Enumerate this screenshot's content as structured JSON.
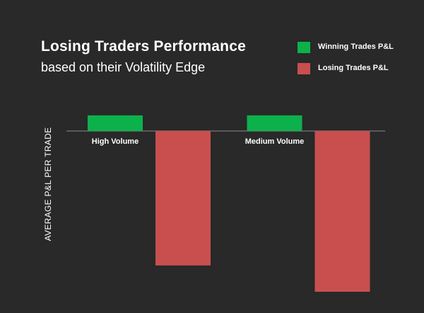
{
  "chart_data": {
    "type": "bar",
    "title": "Losing Traders Performance",
    "subtitle": "based on their Volatility Edge",
    "xlabel": "",
    "ylabel": "AVERAGE P&L PER TRADE",
    "categories": [
      "High Volume",
      "Medium Volume"
    ],
    "series": [
      {
        "name": "Winning Trades P&L",
        "color": "#0db14b",
        "values": [
          22,
          22
        ]
      },
      {
        "name": "Losing Trades P&L",
        "color": "#c94f4f",
        "values": [
          -189,
          -226
        ]
      }
    ],
    "ylim": [
      -226,
      22
    ],
    "grid": false,
    "legend": "top-right"
  }
}
